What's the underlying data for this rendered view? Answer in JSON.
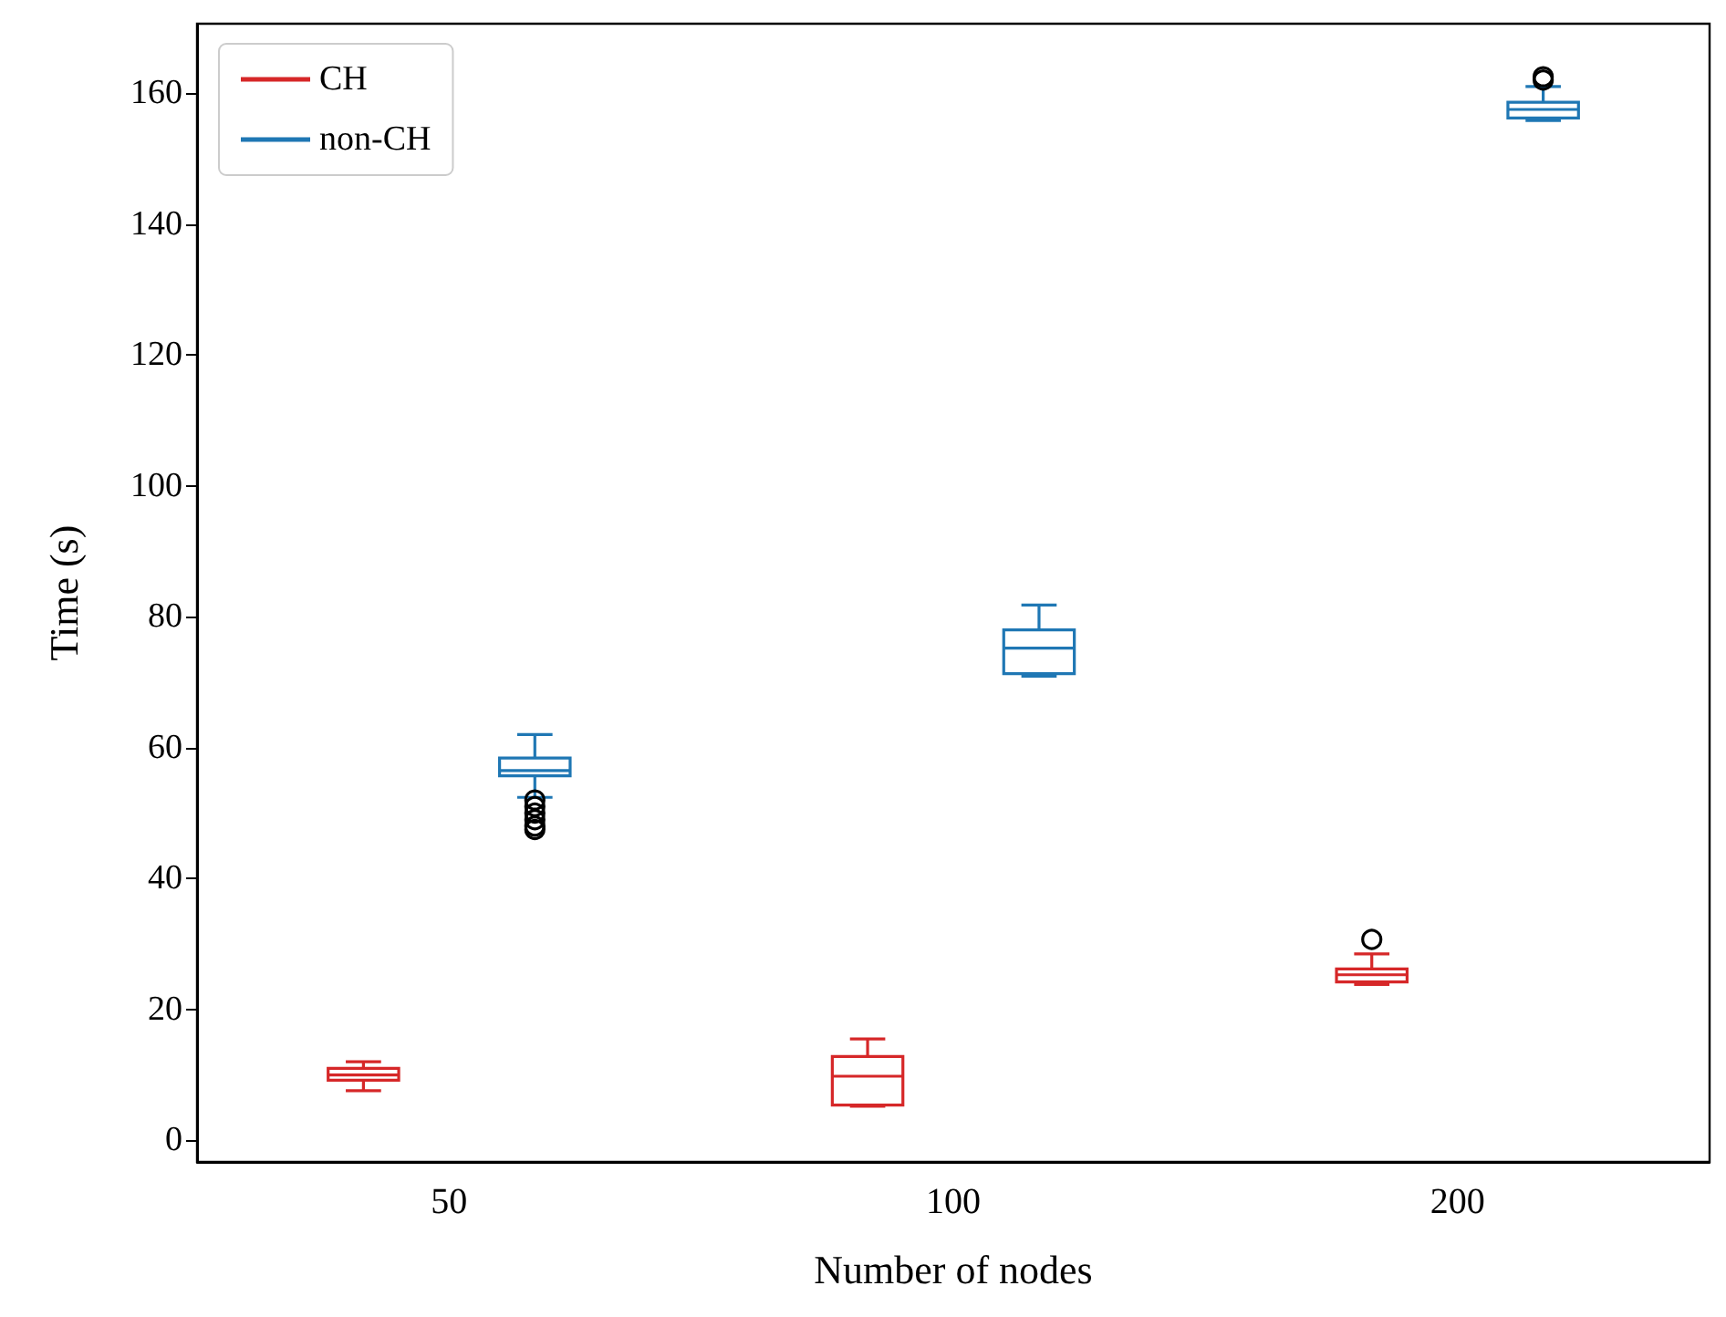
{
  "chart_data": {
    "type": "box",
    "xlabel": "Number of nodes",
    "ylabel": "Time (s)",
    "categories": [
      "50",
      "100",
      "200"
    ],
    "ylim": [
      -3.3,
      170.6
    ],
    "yticks": [
      0,
      20,
      40,
      60,
      80,
      100,
      120,
      140,
      160
    ],
    "grid": false,
    "legend": "top left",
    "series": [
      {
        "name": "CH",
        "color": "#d62728",
        "boxes": [
          {
            "low": 7.6,
            "q1": 9.2,
            "median": 10,
            "q3": 11,
            "high": 12
          },
          {
            "low": 5.2,
            "q1": 5.4,
            "median": 9.8,
            "q3": 12.8,
            "high": 15.5
          },
          {
            "low": 23.8,
            "q1": 24.2,
            "median": 25.3,
            "q3": 26.2,
            "high": 28.5,
            "outliers": [
              30.7
            ]
          }
        ]
      },
      {
        "name": "non-CH",
        "color": "#1f77b4",
        "boxes": [
          {
            "low": 52.4,
            "q1": 55.7,
            "median": 56.5,
            "q3": 58.4,
            "high": 62,
            "outliers": [
              52,
              51,
              50,
              49,
              48,
              47.5
            ]
          },
          {
            "low": 70.9,
            "q1": 71.3,
            "median": 75.2,
            "q3": 78,
            "high": 81.8
          },
          {
            "low": 155.8,
            "q1": 156.2,
            "median": 157.5,
            "q3": 158.6,
            "high": 161,
            "outliers": [
              162,
              162.5
            ]
          }
        ]
      }
    ]
  }
}
